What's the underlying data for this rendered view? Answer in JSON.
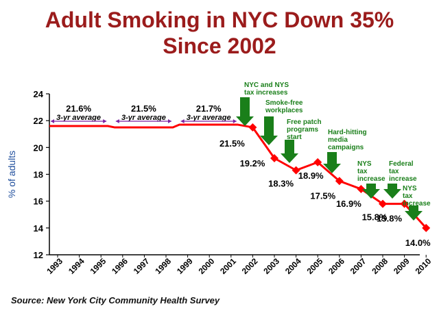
{
  "title_line1": "Adult Smoking in NYC Down 35%",
  "title_line2": "Since 2002",
  "source": "Source: New York City Community Health Survey",
  "colors": {
    "title": "#9b1c1c",
    "line": "#ff0000",
    "marker": "#ff0000",
    "arrow": "#1a7f1a",
    "annotation": "#1a7f1a",
    "average_arrow": "#7b1fa2",
    "ylabel": "#1f4e9c"
  },
  "chart_data": {
    "type": "line",
    "title": "Adult Smoking in NYC Down 35% Since 2002",
    "xlabel": "",
    "ylabel": "% of adults",
    "ylim": [
      12,
      24
    ],
    "yticks": [
      12,
      14,
      16,
      18,
      20,
      22,
      24
    ],
    "x": [
      "1993",
      "1994",
      "1995",
      "1996",
      "1997",
      "1998",
      "1999",
      "2000",
      "2001",
      "2002",
      "2003",
      "2004",
      "2005",
      "2006",
      "2007",
      "2008",
      "2009",
      "2010"
    ],
    "averages": [
      {
        "value": "21.6%",
        "label": "3-yr average",
        "from": "1993",
        "to": "1995",
        "y": 21.6
      },
      {
        "value": "21.5%",
        "label": "3-yr average",
        "from": "1996",
        "to": "1998",
        "y": 21.5
      },
      {
        "value": "21.7%",
        "label": "3-yr average",
        "from": "1999",
        "to": "2001",
        "y": 21.7
      }
    ],
    "series": [
      {
        "name": "Adult smoking prevalence",
        "points": [
          {
            "x": "2002",
            "y": 21.5,
            "label": "21.5%"
          },
          {
            "x": "2003",
            "y": 19.2,
            "label": "19.2%"
          },
          {
            "x": "2004",
            "y": 18.3,
            "label": "18.3%"
          },
          {
            "x": "2005",
            "y": 18.9,
            "label": "18.9%"
          },
          {
            "x": "2006",
            "y": 17.5,
            "label": "17.5%"
          },
          {
            "x": "2007",
            "y": 16.9,
            "label": "16.9%"
          },
          {
            "x": "2008",
            "y": 15.8,
            "label": "15.8%"
          },
          {
            "x": "2009",
            "y": 15.8,
            "label": "15.8%"
          },
          {
            "x": "2010",
            "y": 14.0,
            "label": "14.0%"
          }
        ]
      }
    ],
    "annotations": [
      {
        "x": "2002",
        "lines": [
          "NYC and NYS",
          "tax increases"
        ]
      },
      {
        "x": "2003",
        "lines": [
          "Smoke-free",
          "workplaces"
        ]
      },
      {
        "x": "2004",
        "lines": [
          "Free patch",
          "programs",
          "start"
        ]
      },
      {
        "x": "2006",
        "lines": [
          "Hard-hitting",
          "media",
          "campaigns"
        ]
      },
      {
        "x": "2008",
        "lines": [
          "NYS",
          "tax",
          "increase"
        ]
      },
      {
        "x": "2009",
        "lines": [
          "Federal",
          "tax",
          "increase"
        ]
      },
      {
        "x": "2010",
        "lines": [
          "NYS",
          "tax",
          "increase"
        ]
      }
    ]
  }
}
